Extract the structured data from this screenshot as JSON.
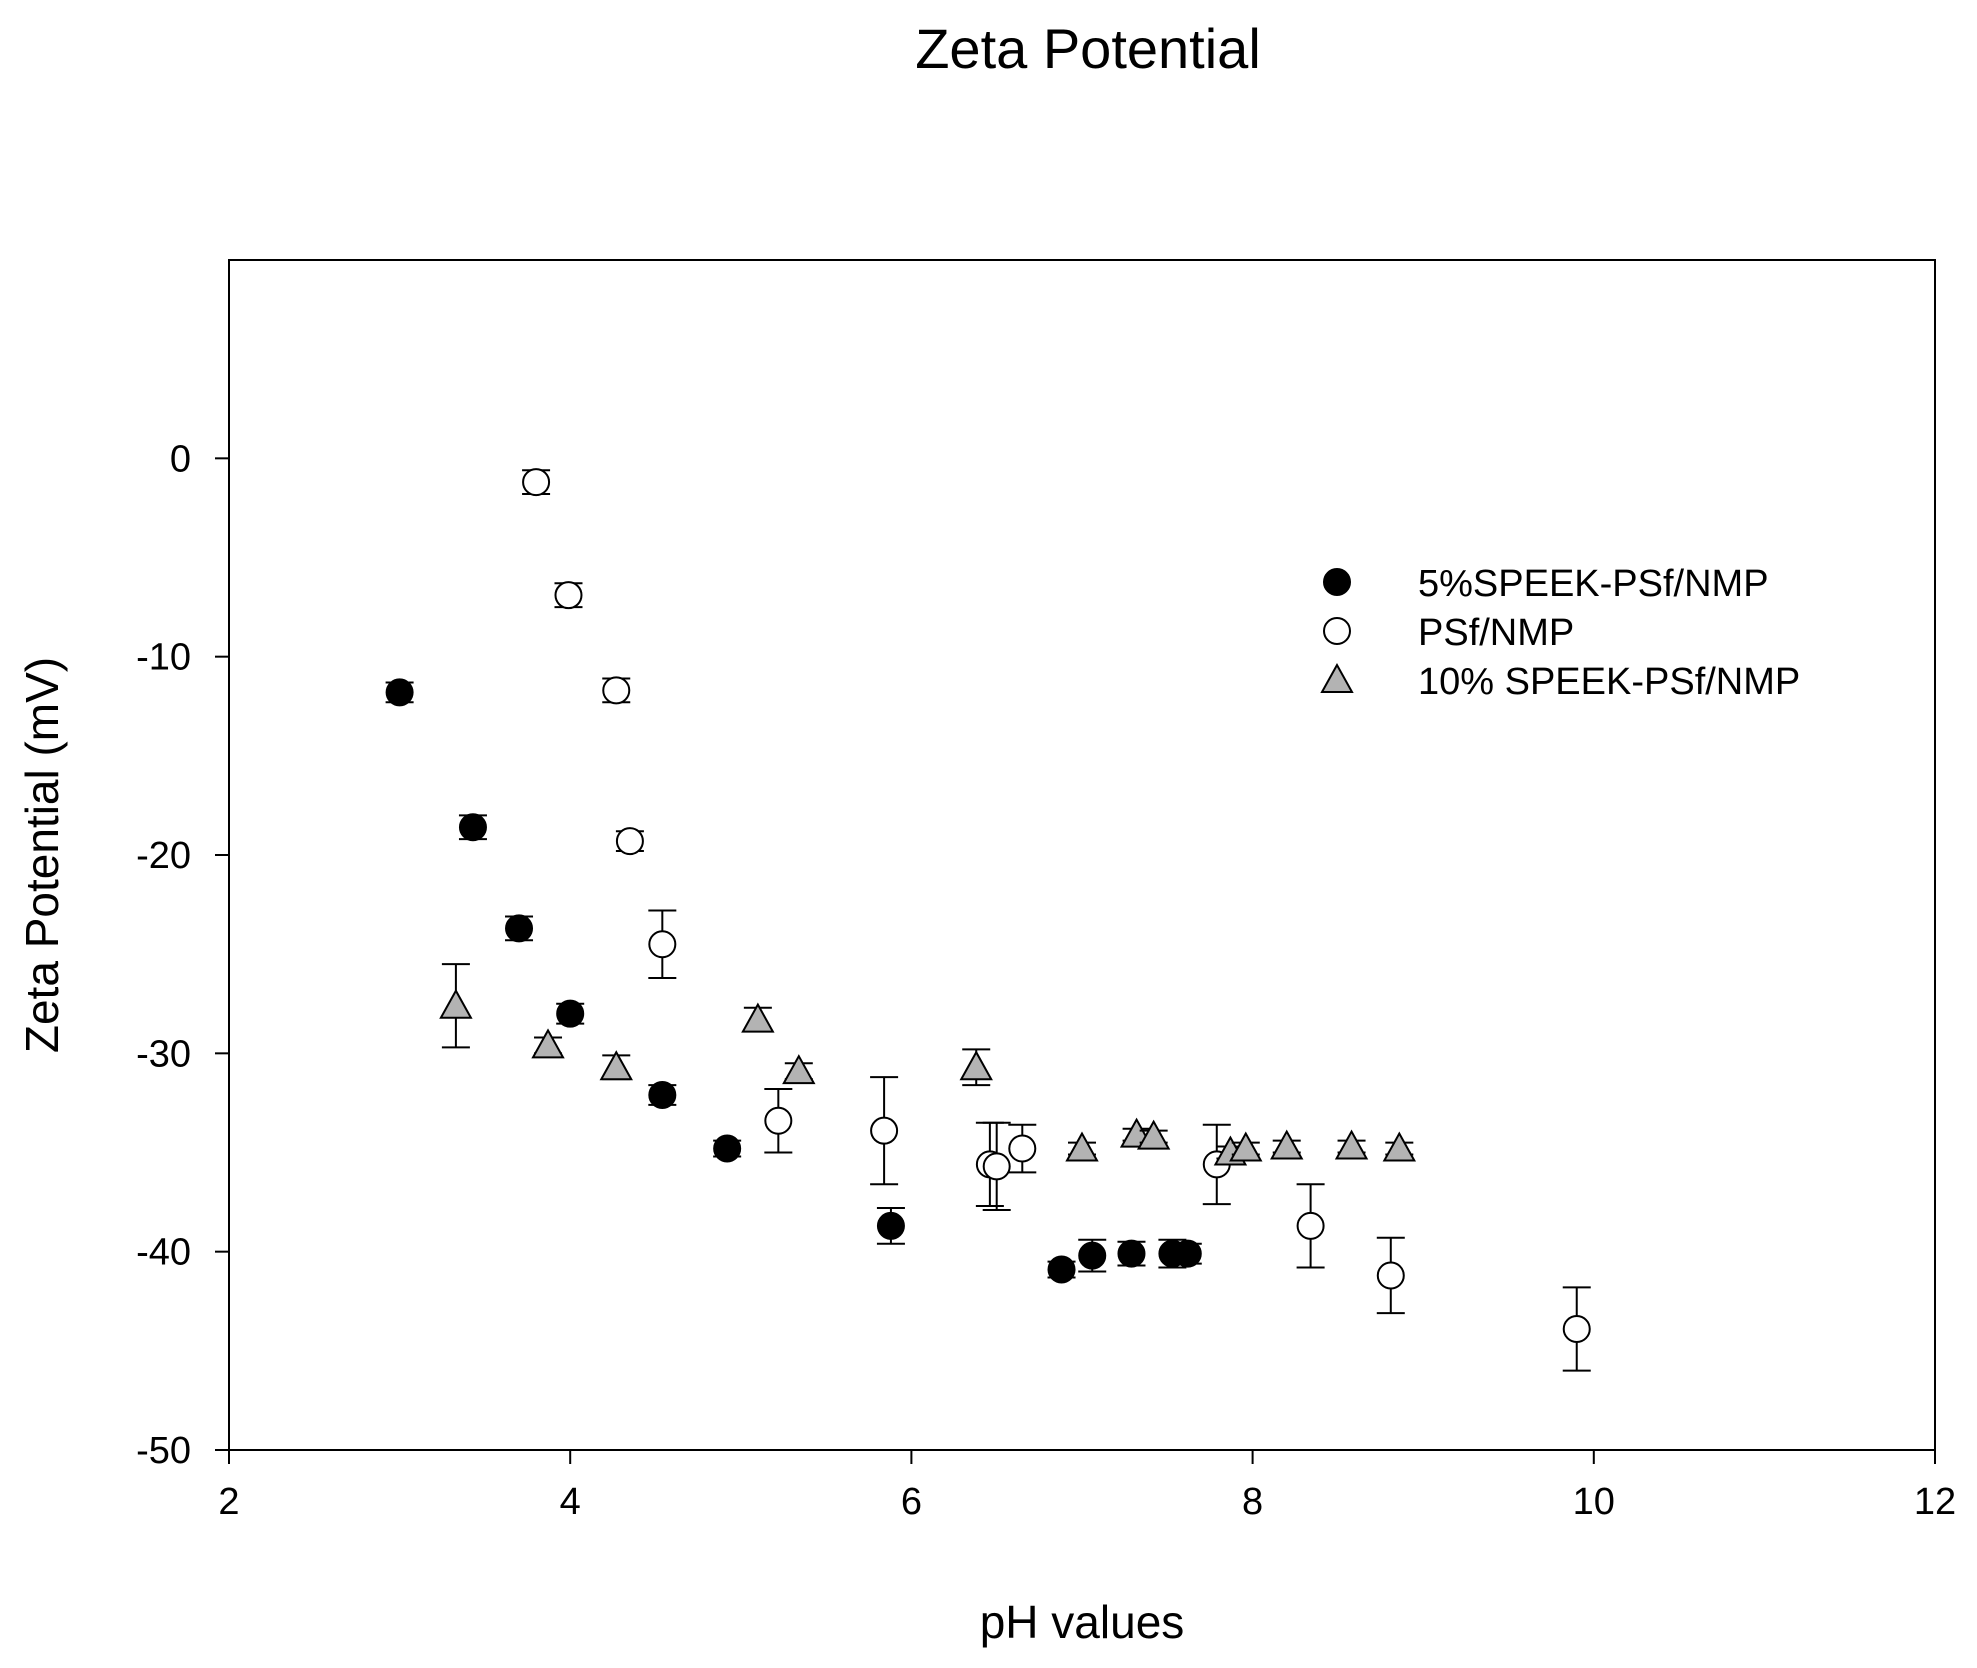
{
  "chart_data": {
    "type": "scatter",
    "title": "Zeta Potential",
    "xlabel": "pH values",
    "ylabel": "Zeta Potential (mV)",
    "xlim": [
      2,
      12
    ],
    "ylim": [
      -50,
      10
    ],
    "xticks": [
      2,
      4,
      6,
      8,
      10,
      12
    ],
    "yticks": [
      -50,
      -40,
      -30,
      -20,
      -10,
      0
    ],
    "grid": false,
    "legend_position": "top-right",
    "series": [
      {
        "name": "5%SPEEK-PSf/NMP",
        "marker": "circle",
        "fill": "#000000",
        "stroke": "#000000",
        "points": [
          {
            "x": 3.0,
            "y": -11.8,
            "err": 0.5
          },
          {
            "x": 3.43,
            "y": -18.6,
            "err": 0.6
          },
          {
            "x": 3.7,
            "y": -23.7,
            "err": 0.6
          },
          {
            "x": 4.0,
            "y": -28.0,
            "err": 0.5
          },
          {
            "x": 4.54,
            "y": -32.1,
            "err": 0.5
          },
          {
            "x": 4.92,
            "y": -34.8,
            "err": 0.4
          },
          {
            "x": 5.88,
            "y": -38.7,
            "err": 0.9
          },
          {
            "x": 6.88,
            "y": -40.9,
            "err": 0.4
          },
          {
            "x": 7.06,
            "y": -40.2,
            "err": 0.8
          },
          {
            "x": 7.29,
            "y": -40.1,
            "err": 0.6
          },
          {
            "x": 7.53,
            "y": -40.1,
            "err": 0.7
          },
          {
            "x": 7.62,
            "y": -40.1,
            "err": 0.5
          }
        ]
      },
      {
        "name": "PSf/NMP",
        "marker": "circle",
        "fill": "#ffffff",
        "stroke": "#000000",
        "points": [
          {
            "x": 3.8,
            "y": -1.2,
            "err": 0.6
          },
          {
            "x": 3.99,
            "y": -6.9,
            "err": 0.6
          },
          {
            "x": 4.27,
            "y": -11.7,
            "err": 0.6
          },
          {
            "x": 4.35,
            "y": -19.3,
            "err": 0.5
          },
          {
            "x": 4.54,
            "y": -24.5,
            "err": 1.7
          },
          {
            "x": 5.22,
            "y": -33.4,
            "err": 1.6
          },
          {
            "x": 5.84,
            "y": -33.9,
            "err": 2.7
          },
          {
            "x": 6.46,
            "y": -35.6,
            "err": 2.1
          },
          {
            "x": 6.5,
            "y": -35.7,
            "err": 2.2
          },
          {
            "x": 6.65,
            "y": -34.8,
            "err": 1.2
          },
          {
            "x": 7.79,
            "y": -35.6,
            "err": 2.0
          },
          {
            "x": 8.34,
            "y": -38.7,
            "err": 2.1
          },
          {
            "x": 8.81,
            "y": -41.2,
            "err": 1.9
          },
          {
            "x": 9.9,
            "y": -43.9,
            "err": 2.1
          }
        ]
      },
      {
        "name": "10% SPEEK-PSf/NMP",
        "marker": "triangle",
        "fill": "#b3b3b3",
        "stroke": "#000000",
        "points": [
          {
            "x": 3.33,
            "y": -27.6,
            "err": 2.1
          },
          {
            "x": 3.87,
            "y": -29.6,
            "err": 0.4
          },
          {
            "x": 4.27,
            "y": -30.7,
            "err": 0.6
          },
          {
            "x": 5.1,
            "y": -28.3,
            "err": 0.6
          },
          {
            "x": 5.34,
            "y": -30.9,
            "err": 0.4
          },
          {
            "x": 6.38,
            "y": -30.7,
            "err": 0.9
          },
          {
            "x": 7.0,
            "y": -34.8,
            "err": 0.3
          },
          {
            "x": 7.32,
            "y": -34.1,
            "err": 0.3
          },
          {
            "x": 7.42,
            "y": -34.2,
            "err": 0.3
          },
          {
            "x": 7.87,
            "y": -35.0,
            "err": 0.3
          },
          {
            "x": 7.96,
            "y": -34.8,
            "err": 0.3
          },
          {
            "x": 8.2,
            "y": -34.7,
            "err": 0.3
          },
          {
            "x": 8.58,
            "y": -34.7,
            "err": 0.3
          },
          {
            "x": 8.86,
            "y": -34.8,
            "err": 0.3
          }
        ]
      }
    ]
  }
}
